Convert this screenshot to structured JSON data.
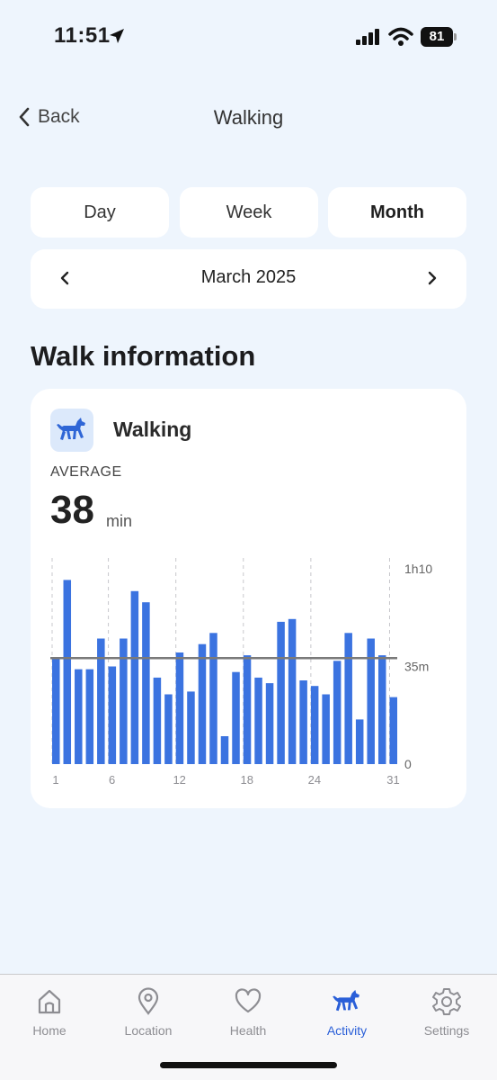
{
  "status_bar": {
    "time": "11:51",
    "battery": "81"
  },
  "nav": {
    "back_label": "Back",
    "title": "Walking"
  },
  "period_tabs": [
    {
      "label": "Day",
      "active": false
    },
    {
      "label": "Week",
      "active": false
    },
    {
      "label": "Month",
      "active": true
    }
  ],
  "month_selector": {
    "label": "March 2025"
  },
  "section_title": "Walk information",
  "card": {
    "title": "Walking",
    "icon": "dog-walking-icon",
    "average_label": "AVERAGE",
    "average_value": "38",
    "average_unit": "min"
  },
  "chart_data": {
    "type": "bar",
    "x": [
      1,
      2,
      3,
      4,
      5,
      6,
      7,
      8,
      9,
      10,
      11,
      12,
      13,
      14,
      15,
      16,
      17,
      18,
      19,
      20,
      21,
      22,
      23,
      24,
      25,
      26,
      27,
      28,
      29,
      30,
      31
    ],
    "x_tick_labels": [
      "1",
      "6",
      "12",
      "18",
      "24",
      "31"
    ],
    "values": [
      38,
      66,
      34,
      34,
      45,
      35,
      45,
      62,
      58,
      31,
      25,
      40,
      26,
      43,
      47,
      10,
      33,
      39,
      31,
      29,
      51,
      52,
      30,
      28,
      25,
      37,
      47,
      16,
      45,
      39,
      24
    ],
    "y_unit": "minutes",
    "ylim": [
      0,
      70
    ],
    "y_tick_labels": [
      "0",
      "35m",
      "1h10"
    ],
    "average_line": 38,
    "grid": "vertical-dashed",
    "bar_color": "#3b73e0",
    "average_line_color": "#7a7a7a"
  },
  "tabbar": {
    "items": [
      {
        "label": "Home",
        "icon": "home-icon",
        "active": false
      },
      {
        "label": "Location",
        "icon": "location-pin-icon",
        "active": false
      },
      {
        "label": "Health",
        "icon": "heart-icon",
        "active": false
      },
      {
        "label": "Activity",
        "icon": "dog-walking-icon",
        "active": true
      },
      {
        "label": "Settings",
        "icon": "gear-icon",
        "active": false
      }
    ]
  },
  "colors": {
    "accent": "#2a5fd8",
    "background": "#eef5fd",
    "bar": "#3b73e0"
  }
}
